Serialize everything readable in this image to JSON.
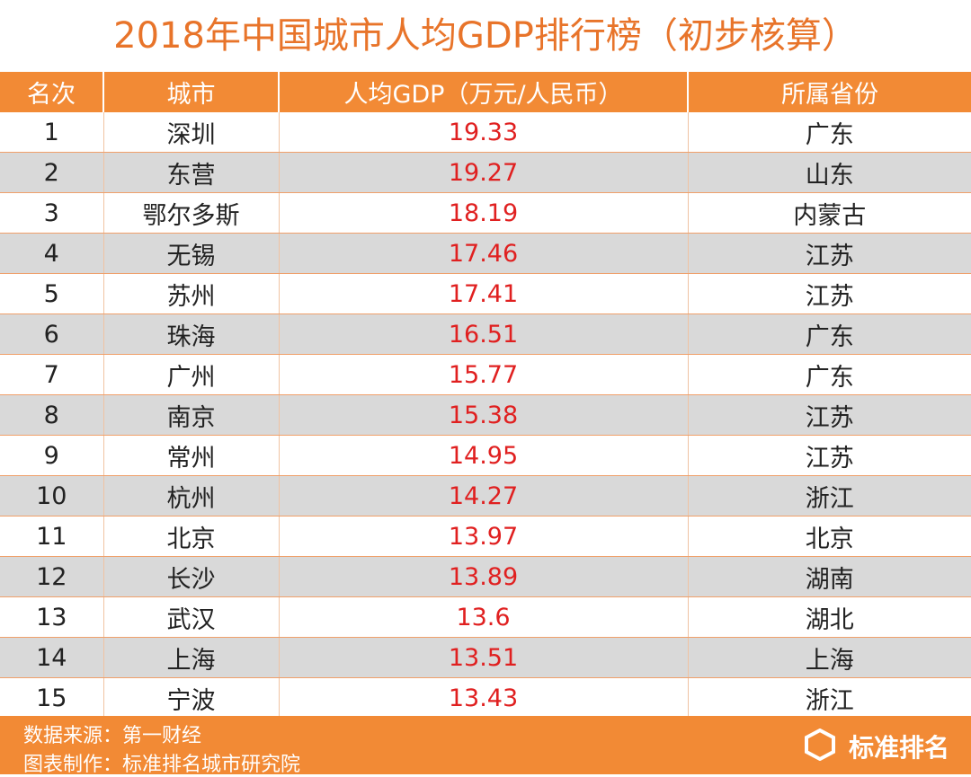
{
  "title": "2018年中国城市人均GDP排行榜（初步核算）",
  "table": {
    "header": [
      "名次",
      "城市",
      "人均GDP（万元/人民币）",
      "所属省份"
    ],
    "rows": [
      [
        1,
        "深圳",
        19.33,
        "广东"
      ],
      [
        2,
        "东营",
        19.27,
        "山东"
      ],
      [
        3,
        "鄂尔多斯",
        18.19,
        "内蒙古"
      ],
      [
        4,
        "无锡",
        17.46,
        "江苏"
      ],
      [
        5,
        "苏州",
        17.41,
        "江苏"
      ],
      [
        6,
        "珠海",
        16.51,
        "广东"
      ],
      [
        7,
        "广州",
        15.77,
        "广东"
      ],
      [
        8,
        "南京",
        15.38,
        "江苏"
      ],
      [
        9,
        "常州",
        14.95,
        "江苏"
      ],
      [
        10,
        "杭州",
        14.27,
        "浙江"
      ],
      [
        11,
        "北京",
        13.97,
        "北京"
      ],
      [
        12,
        "长沙",
        13.89,
        "湖南"
      ],
      [
        13,
        "武汉",
        13.6,
        "湖北"
      ],
      [
        14,
        "上海",
        13.51,
        "上海"
      ],
      [
        15,
        "宁波",
        13.43,
        "浙江"
      ]
    ]
  },
  "footer": {
    "source": "数据来源：第一财经",
    "maker": "图表制作：标准排名城市研究院",
    "logo": "标准排名"
  }
}
